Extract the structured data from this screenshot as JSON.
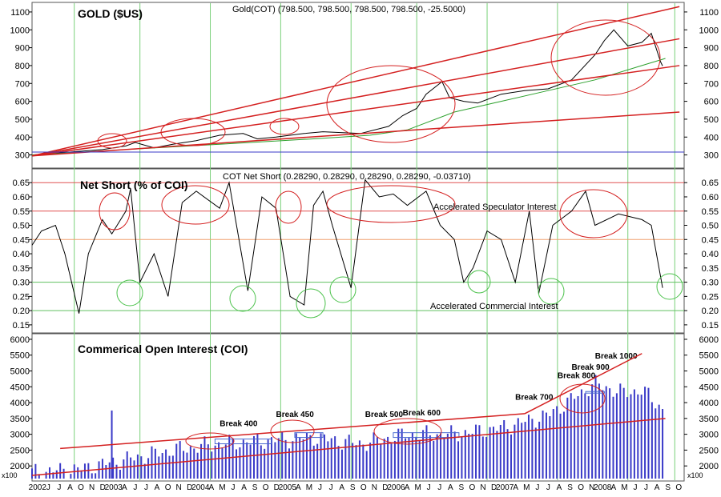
{
  "chart_data": [
    {
      "type": "line",
      "title": "GOLD ($US)",
      "subtitle": "Gold(COT) (798.500, 798.500, 798.500, 798.500, -25.5000)",
      "ylim": [
        240,
        1140
      ],
      "yticks": [
        300,
        400,
        500,
        600,
        700,
        800,
        900,
        1000,
        1100
      ],
      "series": [
        {
          "x": [
            2002.0,
            2002.25,
            2002.5,
            2002.75,
            2003.0,
            2003.1,
            2003.3,
            2003.5,
            2003.75,
            2004.0,
            2004.25,
            2004.4,
            2004.6,
            2004.9,
            2005.1,
            2005.5,
            2005.8,
            2005.95,
            2006.1,
            2006.2,
            2006.37,
            2006.45,
            2006.6,
            2006.75,
            2007.0,
            2007.25,
            2007.5,
            2007.75,
            2008.0,
            2008.1,
            2008.2,
            2008.35,
            2008.5,
            2008.6,
            2008.7,
            2008.72
          ],
          "y": [
            300,
            310,
            320,
            330,
            350,
            370,
            340,
            360,
            380,
            410,
            420,
            390,
            400,
            420,
            430,
            420,
            460,
            520,
            560,
            640,
            710,
            620,
            600,
            590,
            640,
            660,
            670,
            720,
            860,
            940,
            1000,
            910,
            930,
            980,
            820,
            798
          ]
        },
        {
          "name": "",
          "x": [
            2002.0,
            2003.0,
            2004.0,
            2005.0,
            2005.6,
            2006.0,
            2006.5,
            2007.0,
            2007.5,
            2008.0,
            2008.5,
            2008.75
          ],
          "y": [
            300,
            330,
            360,
            390,
            410,
            440,
            540,
            600,
            660,
            720,
            800,
            840
          ]
        }
      ],
      "trendlines": [
        {
          "from": [
            2002.0,
            295
          ],
          "to": [
            2008.9,
            1130
          ]
        },
        {
          "from": [
            2002.0,
            295
          ],
          "to": [
            2008.9,
            950
          ]
        },
        {
          "from": [
            2002.0,
            295
          ],
          "to": [
            2008.9,
            800
          ]
        },
        {
          "from": [
            2002.0,
            295
          ],
          "to": [
            2008.9,
            540
          ]
        }
      ]
    },
    {
      "type": "line",
      "title": "Net Short (% of COI)",
      "subtitle": "COT Net Short (0.28290, 0.28290, 0.28290, 0.28290, -0.03710)",
      "ylim": [
        0.13,
        0.69
      ],
      "yticks": [
        0.15,
        0.2,
        0.25,
        0.3,
        0.35,
        0.4,
        0.45,
        0.5,
        0.55,
        0.6,
        0.65
      ],
      "reference_lines": [
        0.65,
        0.55,
        0.45,
        0.3,
        0.2
      ],
      "annotations": [
        "Accelerated Speculator Interest",
        "Accelerated Commercial Interest"
      ],
      "series": [
        {
          "x": [
            2002.0,
            2002.1,
            2002.25,
            2002.35,
            2002.5,
            2002.6,
            2002.75,
            2002.85,
            2003.0,
            2003.05,
            2003.15,
            2003.3,
            2003.45,
            2003.6,
            2003.75,
            2004.0,
            2004.1,
            2004.3,
            2004.45,
            2004.6,
            2004.75,
            2004.9,
            2005.0,
            2005.1,
            2005.2,
            2005.4,
            2005.55,
            2005.7,
            2005.85,
            2006.0,
            2006.2,
            2006.35,
            2006.5,
            2006.6,
            2006.7,
            2006.85,
            2007.0,
            2007.15,
            2007.3,
            2007.4,
            2007.55,
            2007.75,
            2007.9,
            2008.0,
            2008.25,
            2008.5,
            2008.6,
            2008.72
          ],
          "y": [
            0.43,
            0.48,
            0.5,
            0.4,
            0.19,
            0.4,
            0.52,
            0.47,
            0.55,
            0.63,
            0.3,
            0.4,
            0.25,
            0.58,
            0.62,
            0.56,
            0.65,
            0.27,
            0.6,
            0.56,
            0.25,
            0.22,
            0.57,
            0.62,
            0.5,
            0.28,
            0.66,
            0.6,
            0.61,
            0.57,
            0.62,
            0.5,
            0.45,
            0.3,
            0.35,
            0.48,
            0.45,
            0.3,
            0.55,
            0.26,
            0.5,
            0.55,
            0.62,
            0.5,
            0.54,
            0.52,
            0.5,
            0.28
          ]
        }
      ]
    },
    {
      "type": "bar",
      "title": "Commerical Open Interest (COI)",
      "ylim": [
        1600,
        6100
      ],
      "yticks": [
        2000,
        2500,
        3000,
        3500,
        4000,
        4500,
        5000,
        5500,
        6000
      ],
      "unit_label": "x100",
      "labels": [
        "Break 400",
        "Break 450",
        "Break 500",
        "Break 600",
        "Break 700",
        "Break 800",
        "Break 900",
        "Break 1000"
      ],
      "trendlines": [
        {
          "from": [
            2002.3,
            2550
          ],
          "to": [
            2007.25,
            3650
          ]
        },
        {
          "from": [
            2007.25,
            3650
          ],
          "to": [
            2008.5,
            5550
          ]
        },
        {
          "from": [
            2002.0,
            1700
          ],
          "to": [
            2008.75,
            3500
          ]
        }
      ],
      "series": [
        {
          "x": [
            2002.0,
            2002.5,
            2003.0,
            2003.5,
            2004.0,
            2004.5,
            2005.0,
            2005.5,
            2006.0,
            2006.5,
            2007.0,
            2007.5,
            2008.0,
            2008.3,
            2008.5,
            2008.72
          ],
          "y": [
            1800,
            1900,
            2200,
            2500,
            2700,
            2800,
            2900,
            2700,
            3000,
            3000,
            3200,
            3600,
            4600,
            4300,
            4400,
            3800
          ]
        }
      ]
    }
  ],
  "x_axis_labels": [
    "2002",
    "J",
    "J",
    "A",
    "O",
    "N",
    "D",
    "2003",
    "A",
    "J",
    "J",
    "A",
    "O",
    "N",
    "D",
    "2004",
    "A",
    "M",
    "J",
    "A",
    "S",
    "O",
    "D",
    "2005",
    "A",
    "M",
    "J",
    "J",
    "A",
    "S",
    "O",
    "N",
    "D",
    "2006",
    "A",
    "M",
    "J",
    "J",
    "A",
    "S",
    "O",
    "N",
    "D",
    "2007",
    "A",
    "M",
    "J",
    "J",
    "A",
    "S",
    "O",
    "N",
    "2008",
    "A",
    "M",
    "J",
    "J",
    "A",
    "S",
    "O"
  ],
  "colors": {
    "price": "#000000",
    "moving_average": "#2ca02c",
    "trendline": "#d42020",
    "ellipse_red": "#d42020",
    "ellipse_green": "#4cc24c",
    "bars": "#3a3ac8",
    "grid_vertical": "#7ad07a",
    "break_box": "#4a6ad0"
  }
}
